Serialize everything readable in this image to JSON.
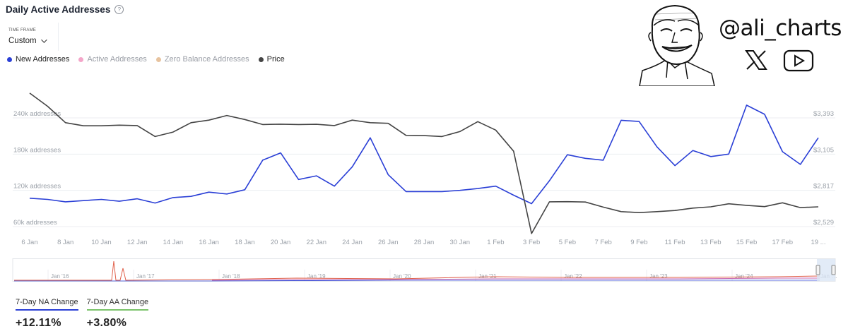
{
  "header": {
    "title": "Daily Active Addresses",
    "help_icon": "help-circle-icon"
  },
  "timeframe": {
    "label": "TIME FRAME",
    "value": "Custom"
  },
  "legend": [
    {
      "label": "New Addresses",
      "color": "#2a3fd6"
    },
    {
      "label": "Active Addresses",
      "color": "#f4a6c9"
    },
    {
      "label": "Zero Balance Addresses",
      "color": "#e7c39f"
    },
    {
      "label": "Price",
      "color": "#444444"
    }
  ],
  "branding": {
    "handle": "@ali_charts",
    "icons": [
      "x-logo-icon",
      "youtube-icon"
    ]
  },
  "chart_data": {
    "type": "line",
    "title": "Daily Active Addresses",
    "x": [
      "6 Jan",
      "7 Jan",
      "8 Jan",
      "9 Jan",
      "10 Jan",
      "11 Jan",
      "12 Jan",
      "13 Jan",
      "14 Jan",
      "15 Jan",
      "16 Jan",
      "17 Jan",
      "18 Jan",
      "19 Jan",
      "20 Jan",
      "21 Jan",
      "22 Jan",
      "23 Jan",
      "24 Jan",
      "25 Jan",
      "26 Jan",
      "27 Jan",
      "28 Jan",
      "29 Jan",
      "30 Jan",
      "31 Jan",
      "1 Feb",
      "2 Feb",
      "3 Feb",
      "4 Feb",
      "5 Feb",
      "6 Feb",
      "7 Feb",
      "8 Feb",
      "9 Feb",
      "10 Feb",
      "11 Feb",
      "12 Feb",
      "13 Feb",
      "14 Feb",
      "15 Feb",
      "16 Feb",
      "17 Feb",
      "18 Feb",
      "19 Feb"
    ],
    "x_tick_labels": [
      "6 Jan",
      "8 Jan",
      "10 Jan",
      "12 Jan",
      "14 Jan",
      "16 Jan",
      "18 Jan",
      "20 Jan",
      "22 Jan",
      "24 Jan",
      "26 Jan",
      "28 Jan",
      "30 Jan",
      "1 Feb",
      "3 Feb",
      "5 Feb",
      "7 Feb",
      "9 Feb",
      "11 Feb",
      "13 Feb",
      "15 Feb",
      "17 Feb",
      "19 ..."
    ],
    "series": [
      {
        "name": "New Addresses",
        "axis": "left",
        "color": "#2a3fd6",
        "values": [
          107000,
          105000,
          101000,
          103000,
          105000,
          102000,
          106000,
          99000,
          108000,
          110000,
          117000,
          114000,
          121000,
          170000,
          182000,
          138000,
          144000,
          127000,
          159000,
          207000,
          146000,
          118000,
          118000,
          118000,
          120000,
          123000,
          127000,
          112000,
          98000,
          136000,
          179000,
          173000,
          170000,
          236000,
          234000,
          192000,
          161000,
          186000,
          176000,
          180000,
          261000,
          246000,
          184000,
          163000,
          207000
        ]
      },
      {
        "name": "Price",
        "axis": "right",
        "color": "#444444",
        "values": [
          3590,
          3485,
          3355,
          3330,
          3330,
          3335,
          3332,
          3245,
          3280,
          3355,
          3375,
          3412,
          3380,
          3340,
          3343,
          3340,
          3342,
          3332,
          3375,
          3355,
          3350,
          3254,
          3252,
          3245,
          3284,
          3363,
          3296,
          3128,
          2474,
          2726,
          2727,
          2724,
          2684,
          2648,
          2640,
          2648,
          2657,
          2676,
          2686,
          2710,
          2698,
          2688,
          2718,
          2680,
          2686
        ]
      }
    ],
    "y_left": {
      "tick_labels": [
        "60k addresses",
        "120k addresses",
        "180k addresses",
        "240k addresses"
      ],
      "ticks": [
        60000,
        120000,
        180000,
        240000
      ]
    },
    "y_right": {
      "tick_labels": [
        "$2,529",
        "$2,817",
        "$3,105",
        "$3,393"
      ],
      "ticks": [
        2529,
        2817,
        3105,
        3393
      ]
    },
    "grid": true,
    "navigator": {
      "tick_labels": [
        "Jan '16",
        "Jan '17",
        "Jan '18",
        "Jan '19",
        "Jan '20",
        "Jan '21",
        "Jan '22",
        "Jan '23",
        "Jan '24",
        "Jan '..."
      ]
    }
  },
  "stats": [
    {
      "label": "7-Day NA Change",
      "value": "+12.11%",
      "color": "#2a3fd6"
    },
    {
      "label": "7-Day AA Change",
      "value": "+3.80%",
      "color": "#7ac26a"
    }
  ]
}
